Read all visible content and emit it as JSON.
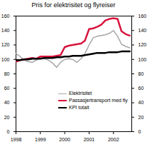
{
  "chart_data": {
    "type": "line",
    "title": "Pris for elektrisitet og flyreiser",
    "x": [
      1998.0,
      1998.17,
      1998.33,
      1998.5,
      1998.67,
      1998.83,
      1999.0,
      1999.17,
      1999.33,
      1999.5,
      1999.67,
      1999.83,
      2000.0,
      2000.17,
      2000.33,
      2000.5,
      2000.67,
      2000.83,
      2001.0,
      2001.17,
      2001.33,
      2001.5,
      2001.67,
      2001.83,
      2002.0,
      2002.17,
      2002.33,
      2002.5,
      2002.67
    ],
    "series": [
      {
        "name": "Elektrisitet",
        "color": "#a6a6a6",
        "values": [
          108,
          104,
          99,
          97,
          96,
          99,
          102,
          101,
          99,
          95,
          89,
          96,
          100,
          101,
          100,
          96,
          101,
          108,
          120,
          130,
          132,
          133,
          134,
          136,
          140,
          132,
          121,
          118,
          116
        ]
      },
      {
        "name": "Passasjertransport med fly",
        "color": "#d7143c",
        "values": [
          97,
          99,
          100,
          101,
          102,
          101,
          104,
          104,
          104,
          104,
          105,
          106,
          117,
          119,
          120,
          121,
          122,
          126,
          142,
          143,
          145,
          148,
          154,
          156,
          157,
          156,
          139,
          135,
          133
        ]
      },
      {
        "name": "KPI totalt",
        "color": "#000000",
        "values": [
          99,
          99,
          100,
          100,
          101,
          101,
          101,
          102,
          102,
          102,
          103,
          103,
          104,
          104,
          105,
          105,
          105,
          106,
          107,
          108,
          109,
          109,
          109,
          110,
          110,
          110,
          111,
          111,
          111
        ]
      }
    ],
    "xlim": [
      1998,
      2002.75
    ],
    "xticks": [
      1998,
      1999,
      2000,
      2001,
      2002
    ],
    "ylim": [
      0,
      160
    ],
    "yticks": [
      0,
      20,
      40,
      60,
      80,
      100,
      120,
      140,
      160
    ],
    "grid": false
  }
}
